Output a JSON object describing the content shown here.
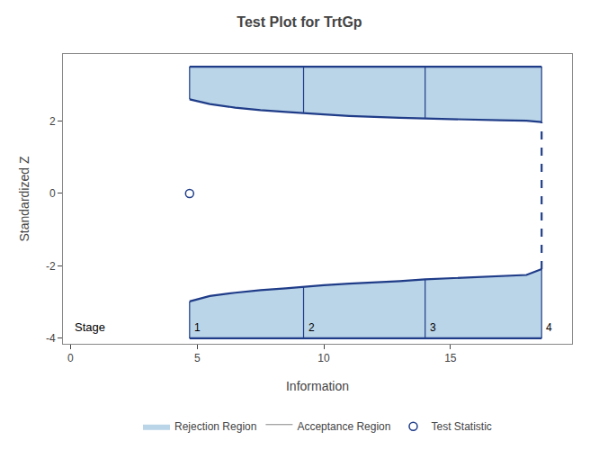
{
  "chart_data": {
    "type": "boundary",
    "title": "Test Plot for TrtGp",
    "x_label": "Information",
    "y_label": "Standardized Z",
    "xlim": [
      -0.3,
      19.8
    ],
    "ylim": [
      -4.15,
      3.85
    ],
    "xticks": [
      0,
      5,
      10,
      15
    ],
    "yticks": [
      -4,
      -2,
      0,
      2
    ],
    "grid": false,
    "color": "#1f3c88",
    "stage_label": "Stage",
    "stages": {
      "x": [
        4.7,
        9.2,
        14.0,
        18.6
      ],
      "labels": [
        "1",
        "2",
        "3",
        "4"
      ]
    },
    "upper_boundary": {
      "x": [
        4.7,
        5.5,
        6.5,
        7.5,
        8.5,
        9.2,
        10.0,
        11.0,
        12.0,
        13.0,
        14.0,
        15.0,
        16.0,
        17.0,
        18.0,
        18.6
      ],
      "values": [
        2.6,
        2.47,
        2.37,
        2.3,
        2.25,
        2.21,
        2.18,
        2.14,
        2.11,
        2.09,
        2.07,
        2.05,
        2.04,
        2.02,
        2.01,
        1.97
      ]
    },
    "lower_boundary": {
      "x": [
        4.7,
        5.5,
        6.5,
        7.5,
        8.5,
        9.2,
        10.0,
        11.0,
        12.0,
        13.0,
        14.0,
        15.0,
        16.0,
        17.0,
        18.0,
        18.6
      ],
      "values": [
        -2.98,
        -2.83,
        -2.74,
        -2.67,
        -2.62,
        -2.57,
        -2.53,
        -2.49,
        -2.46,
        -2.42,
        -2.37,
        -2.34,
        -2.31,
        -2.28,
        -2.25,
        -2.09
      ]
    },
    "upper_top": 3.5,
    "lower_bottom": -4.0,
    "final_line": {
      "x": 18.6,
      "values": [
        -2.09,
        1.97
      ]
    },
    "regions": [
      {
        "name": "Rejection Region",
        "color": "#bad4e8"
      },
      {
        "name": "Acceptance Region",
        "color": "#ffffff"
      }
    ],
    "test_statistic": {
      "name": "Test Statistic",
      "x": [
        4.7
      ],
      "values": [
        0.0
      ]
    }
  }
}
